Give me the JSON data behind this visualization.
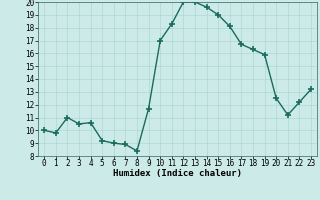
{
  "x": [
    0,
    1,
    2,
    3,
    4,
    5,
    6,
    7,
    8,
    9,
    10,
    11,
    12,
    13,
    14,
    15,
    16,
    17,
    18,
    19,
    20,
    21,
    22,
    23
  ],
  "y": [
    10.0,
    9.8,
    11.0,
    10.5,
    10.6,
    9.2,
    9.0,
    8.9,
    8.4,
    11.7,
    17.0,
    18.3,
    20.0,
    20.0,
    19.6,
    19.0,
    18.1,
    16.7,
    16.3,
    15.9,
    12.5,
    11.2,
    12.2,
    13.2
  ],
  "line_color": "#1a6b5e",
  "marker": "+",
  "marker_size": 4,
  "bg_color": "#cceae8",
  "grid_color": "#afd8d4",
  "xlabel": "Humidex (Indice chaleur)",
  "ylim": [
    8,
    20
  ],
  "xlim_min": -0.5,
  "xlim_max": 23.5,
  "yticks": [
    8,
    9,
    10,
    11,
    12,
    13,
    14,
    15,
    16,
    17,
    18,
    19,
    20
  ],
  "xticks": [
    0,
    1,
    2,
    3,
    4,
    5,
    6,
    7,
    8,
    9,
    10,
    11,
    12,
    13,
    14,
    15,
    16,
    17,
    18,
    19,
    20,
    21,
    22,
    23
  ],
  "tick_fontsize": 5.5,
  "xlabel_fontsize": 6.5,
  "linewidth": 1.0
}
